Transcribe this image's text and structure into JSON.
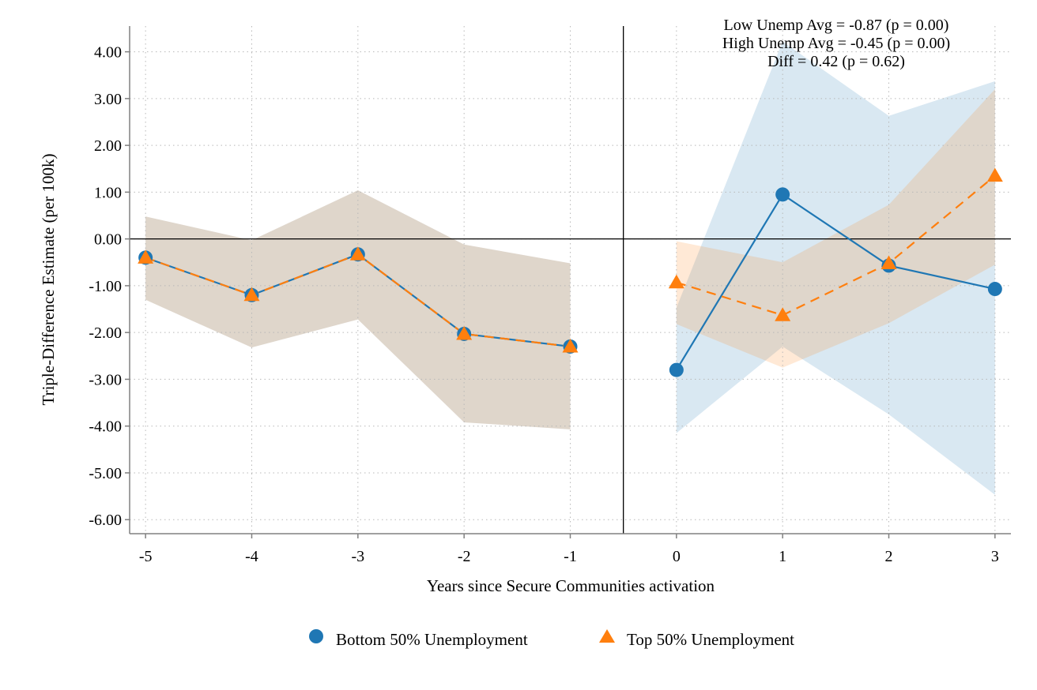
{
  "chart_data": {
    "type": "line",
    "title": "",
    "xlabel": "Years since Secure Communities activation",
    "ylabel": "Triple-Difference Estimate (per 100k)",
    "xlim": [
      -5.15,
      3.15
    ],
    "ylim": [
      -6.3,
      4.55
    ],
    "x_ticks": [
      -5,
      -4,
      -3,
      -2,
      -1,
      0,
      1,
      2,
      3
    ],
    "x_tick_labels": [
      "-5",
      "-4",
      "-3",
      "-2",
      "-1",
      "0",
      "1",
      "2",
      "3"
    ],
    "y_ticks": [
      4,
      3,
      2,
      1,
      0,
      -1,
      -2,
      -3,
      -4,
      -5,
      -6
    ],
    "y_tick_labels": [
      "4.00",
      "3.00",
      "2.00",
      "1.00",
      "0.00",
      "-1.00",
      "-2.00",
      "-3.00",
      "-4.00",
      "-5.00",
      "-6.00"
    ],
    "grid": true,
    "reference_lines": {
      "y": 0,
      "x": -0.5
    },
    "annotations": [
      "Low Unemp Avg = -0.87 (p = 0.00)",
      "High Unemp Avg = -0.45 (p = 0.00)",
      "Diff = 0.42 (p = 0.62)"
    ],
    "legend_position": "bottom",
    "series": [
      {
        "name": "Bottom 50% Unemployment",
        "color": "#1f77b4",
        "marker": "circle",
        "line_style": "solid",
        "x": [
          -5,
          -4,
          -3,
          -2,
          -1,
          0,
          1,
          2,
          3
        ],
        "values": [
          -0.4,
          -1.2,
          -0.33,
          -2.03,
          -2.3,
          -2.8,
          0.95,
          -0.57,
          -1.07
        ],
        "ci_lower": [
          -1.3,
          -2.32,
          -1.72,
          -3.92,
          -4.07,
          -4.15,
          -2.3,
          -3.75,
          -5.47
        ],
        "ci_upper": [
          0.48,
          -0.03,
          1.04,
          -0.12,
          -0.52,
          -1.47,
          4.22,
          2.63,
          3.37
        ]
      },
      {
        "name": "Top 50% Unemployment",
        "color": "#ff7f0e",
        "marker": "triangle",
        "line_style": "dashed",
        "x": [
          -5,
          -4,
          -3,
          -2,
          -1,
          0,
          1,
          2,
          3
        ],
        "values": [
          -0.4,
          -1.2,
          -0.33,
          -2.03,
          -2.3,
          -0.93,
          -1.63,
          -0.52,
          1.35
        ],
        "ci_lower": [
          -1.3,
          -2.32,
          -1.72,
          -3.92,
          -4.07,
          -1.82,
          -2.75,
          -1.8,
          -0.55
        ],
        "ci_upper": [
          0.48,
          -0.03,
          1.04,
          -0.12,
          -0.52,
          -0.05,
          -0.5,
          0.73,
          3.2
        ]
      }
    ]
  }
}
